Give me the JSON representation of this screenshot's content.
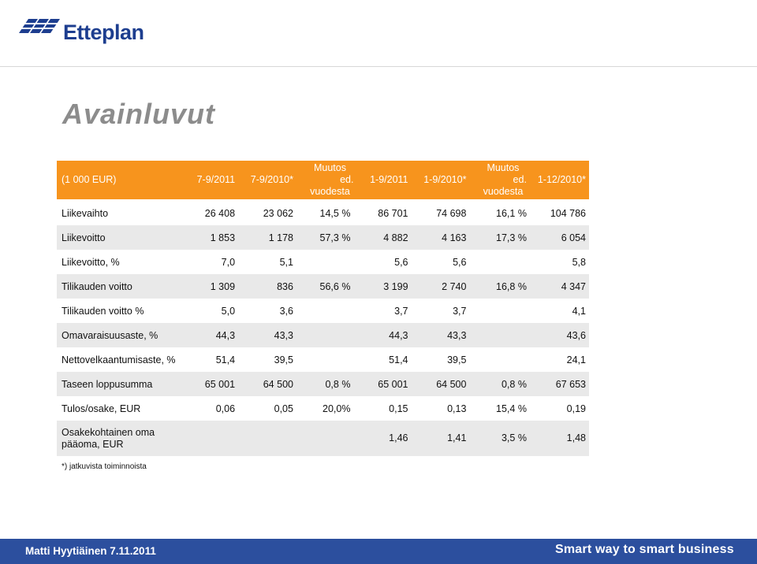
{
  "brand": {
    "name": "Etteplan",
    "logo_icon": "etteplan-logo-icon",
    "color": "#1d3e8f"
  },
  "page": {
    "title": "Avainluvut"
  },
  "table": {
    "headers": [
      "(1 000 EUR)",
      "7-9/2011",
      "7-9/2010*",
      "Muutos ed. vuodesta",
      "1-9/2011",
      "1-9/2010*",
      "Muutos ed. vuodesta",
      "1-12/2010*"
    ],
    "rows": [
      [
        "Liikevaihto",
        "26 408",
        "23 062",
        "14,5 %",
        "86 701",
        "74 698",
        "16,1 %",
        "104 786"
      ],
      [
        "Liikevoitto",
        "1 853",
        "1 178",
        "57,3 %",
        "4 882",
        "4 163",
        "17,3 %",
        "6 054"
      ],
      [
        "Liikevoitto, %",
        "7,0",
        "5,1",
        "",
        "5,6",
        "5,6",
        "",
        "5,8"
      ],
      [
        "Tilikauden voitto",
        "1 309",
        "836",
        "56,6 %",
        "3 199",
        "2 740",
        "16,8 %",
        "4 347"
      ],
      [
        "Tilikauden voitto %",
        "5,0",
        "3,6",
        "",
        "3,7",
        "3,7",
        "",
        "4,1"
      ],
      [
        "Omavaraisuusaste, %",
        "44,3",
        "43,3",
        "",
        "44,3",
        "43,3",
        "",
        "43,6"
      ],
      [
        "Nettovelkaantumisaste, %",
        "51,4",
        "39,5",
        "",
        "51,4",
        "39,5",
        "",
        "24,1"
      ],
      [
        "Taseen loppusumma",
        "65 001",
        "64 500",
        "0,8 %",
        "65 001",
        "64 500",
        "0,8 %",
        "67 653"
      ],
      [
        "Tulos/osake, EUR",
        "0,06",
        "0,05",
        "20,0%",
        "0,15",
        "0,13",
        "15,4 %",
        "0,19"
      ],
      [
        "Osakekohtainen oma pääoma, EUR",
        "",
        "",
        "",
        "1,46",
        "1,41",
        "3,5 %",
        "1,48"
      ]
    ],
    "header_color": "#f7941d",
    "alt_row_color": "#e9e9e9"
  },
  "footnote": "*) jatkuvista toiminnoista",
  "footer": {
    "left_text": "Matti Hyytiäinen 7.11.2011",
    "right_text": "Smart way to smart business",
    "color": "#2c4f9e"
  }
}
